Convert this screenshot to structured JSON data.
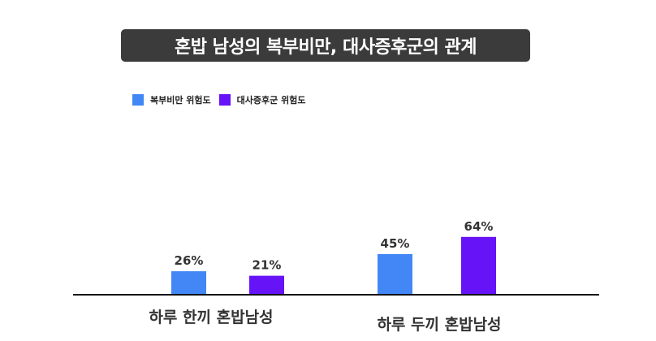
{
  "title": "혼밥 남성의 복부비만, 대사증후군의 관계",
  "legend": [
    {
      "label": "복부비만 위험도",
      "color": "#4287f5"
    },
    {
      "label": "대사증후군 위험도",
      "color": "#6613f7"
    }
  ],
  "chart_data": {
    "type": "bar",
    "title": "혼밥 남성의 복부비만, 대사증후군의 관계",
    "categories": [
      "하루 한끼 혼밥남성",
      "하루 두끼 혼밥남성"
    ],
    "series": [
      {
        "name": "복부비만 위험도",
        "values": [
          26,
          45
        ],
        "labels": [
          "26%",
          "45%"
        ],
        "color": "#4287f5"
      },
      {
        "name": "대사증후군 위험도",
        "values": [
          21,
          64
        ],
        "labels": [
          "21%",
          "64%"
        ],
        "color": "#6613f7"
      }
    ],
    "xlabel": "",
    "ylabel": "",
    "ylim": [
      0,
      70
    ],
    "grid": false,
    "legend_position": "top-left"
  }
}
